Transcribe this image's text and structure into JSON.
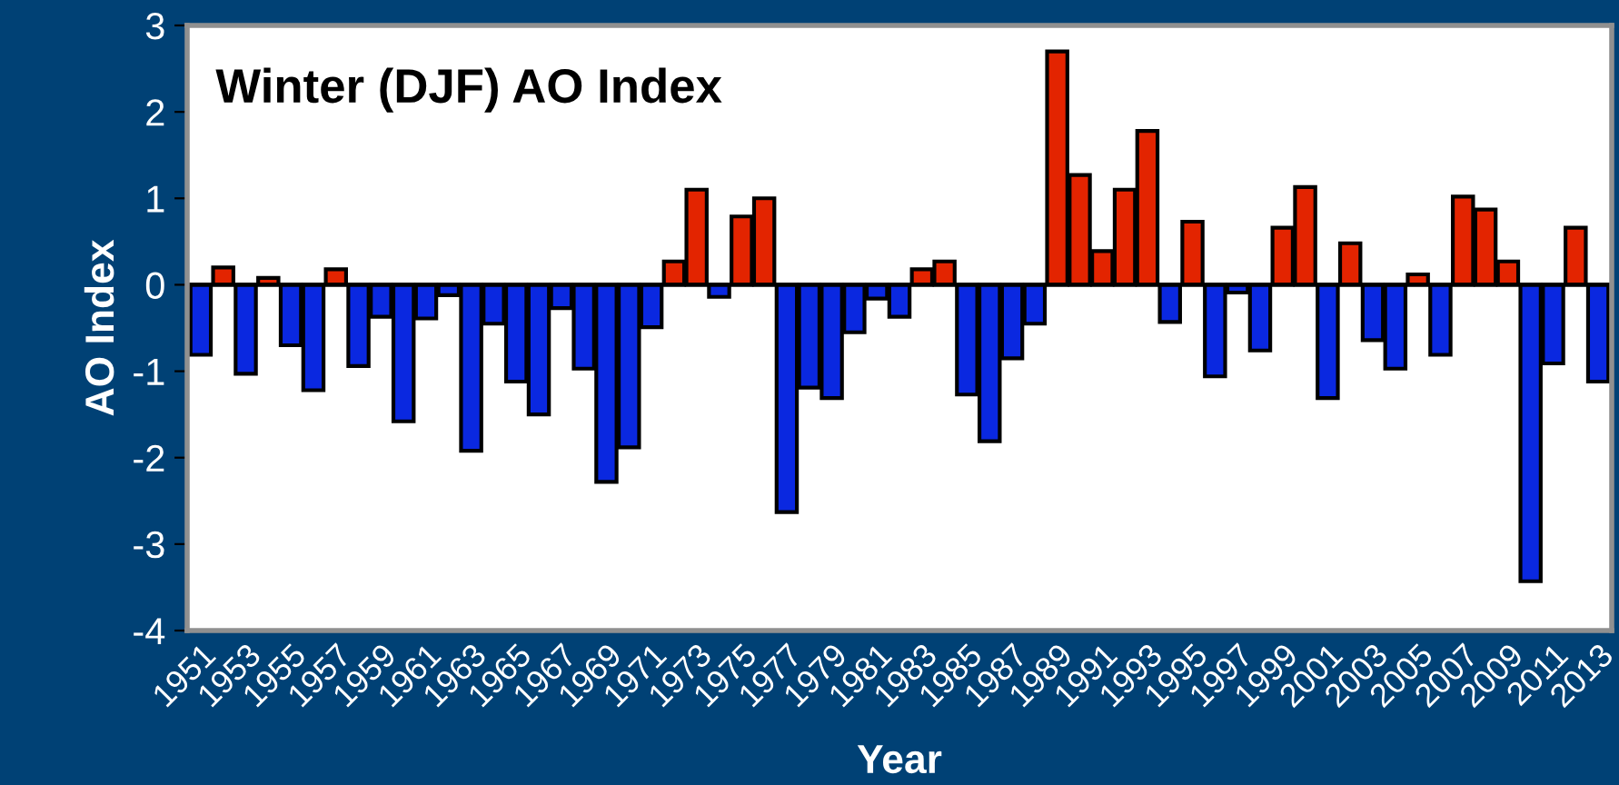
{
  "chart_data": {
    "type": "bar",
    "title": "Winter (DJF) AO Index",
    "xlabel": "Year",
    "ylabel": "AO Index",
    "categories": [
      "1951",
      null,
      "1953",
      null,
      "1955",
      null,
      "1957",
      null,
      "1959",
      null,
      "1961",
      null,
      "1963",
      null,
      "1965",
      null,
      "1967",
      null,
      "1969",
      null,
      "1971",
      null,
      "1973",
      null,
      "1975",
      null,
      "1977",
      null,
      "1979",
      null,
      "1981",
      null,
      "1983",
      null,
      "1985",
      null,
      "1987",
      null,
      "1989",
      null,
      "1991",
      null,
      "1993",
      null,
      "1995",
      null,
      "1997",
      null,
      "1999",
      null,
      "2001",
      null,
      "2003",
      null,
      "2005",
      null,
      "2007",
      null,
      "2009",
      null,
      "2011",
      null,
      "2013"
    ],
    "values": [
      -0.81,
      0.2,
      -1.03,
      0.08,
      -0.7,
      -1.22,
      0.18,
      -0.94,
      -0.37,
      -1.58,
      -0.39,
      -0.12,
      -1.92,
      -0.45,
      -1.12,
      -1.5,
      -0.27,
      -0.97,
      -2.28,
      -1.88,
      -0.49,
      0.27,
      1.1,
      -0.14,
      0.79,
      1.0,
      -2.63,
      -1.19,
      -1.31,
      -0.55,
      -0.16,
      -0.37,
      0.18,
      0.27,
      -1.27,
      -1.81,
      -0.85,
      -0.45,
      2.7,
      1.27,
      0.39,
      1.1,
      1.78,
      -0.43,
      0.73,
      -1.06,
      -0.09,
      -0.76,
      0.66,
      1.13,
      -1.31,
      0.48,
      -0.64,
      -0.97,
      0.12,
      -0.81,
      1.02,
      0.87,
      0.27,
      -3.43,
      -0.91,
      0.66,
      -1.12
    ],
    "colors": [
      "#0a28e0",
      "#e32400",
      "#0a28e0",
      "#e32400",
      "#0a28e0",
      "#0a28e0",
      "#e32400",
      "#0a28e0",
      "#0a28e0",
      "#0a28e0",
      "#0a28e0",
      "#0a28e0",
      "#0a28e0",
      "#0a28e0",
      "#0a28e0",
      "#0a28e0",
      "#0a28e0",
      "#0a28e0",
      "#0a28e0",
      "#0a28e0",
      "#0a28e0",
      "#e32400",
      "#e32400",
      "#0a28e0",
      "#e32400",
      "#e32400",
      "#0a28e0",
      "#0a28e0",
      "#0a28e0",
      "#0a28e0",
      "#0a28e0",
      "#0a28e0",
      "#e32400",
      "#e32400",
      "#0a28e0",
      "#0a28e0",
      "#0a28e0",
      "#0a28e0",
      "#e32400",
      "#e32400",
      "#e32400",
      "#e32400",
      "#e32400",
      "#0a28e0",
      "#e32400",
      "#0a28e0",
      "#0a28e0",
      "#0a28e0",
      "#e32400",
      "#e32400",
      "#0a28e0",
      "#e32400",
      "#0a28e0",
      "#0a28e0",
      "#e32400",
      "#0a28e0",
      "#e32400",
      "#e32400",
      "#e32400",
      "#0a28e0",
      "#0a28e0",
      "#e32400",
      "#0a28e0"
    ],
    "ylim": [
      -4,
      3
    ],
    "yticks": [
      -4,
      -3,
      -2,
      -1,
      0,
      1,
      2,
      3
    ],
    "ref_lines": [
      {
        "axis": "y",
        "value": 0,
        "color": "#000000"
      }
    ]
  }
}
